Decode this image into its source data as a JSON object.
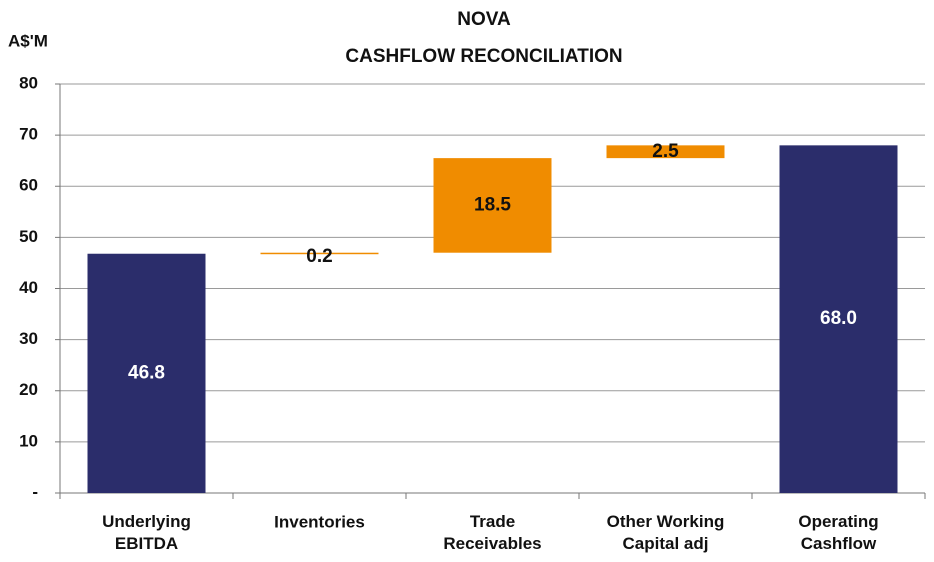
{
  "chart_data": {
    "type": "waterfall",
    "title": "NOVA",
    "subtitle": "CASHFLOW RECONCILIATION",
    "y_label": "A$'M",
    "categories": [
      "Underlying\nEBITDA",
      "Inventories",
      "Trade\nReceivables",
      "Other Working\nCapital adj",
      "Operating\nCashflow"
    ],
    "values": [
      46.8,
      0.2,
      18.5,
      2.5,
      68.0
    ],
    "value_labels": [
      "46.8",
      "0.2",
      "18.5",
      "2.5",
      "68.0"
    ],
    "measure": [
      "absolute",
      "relative",
      "relative",
      "relative",
      "total"
    ],
    "total_color": "#2b2d6b",
    "increase_color": "#f08c00",
    "ylim": [
      0,
      80
    ],
    "yticks": [
      {
        "value": 0,
        "label": "-"
      },
      10,
      20,
      30,
      40,
      50,
      60,
      70,
      80
    ],
    "grid": true
  }
}
